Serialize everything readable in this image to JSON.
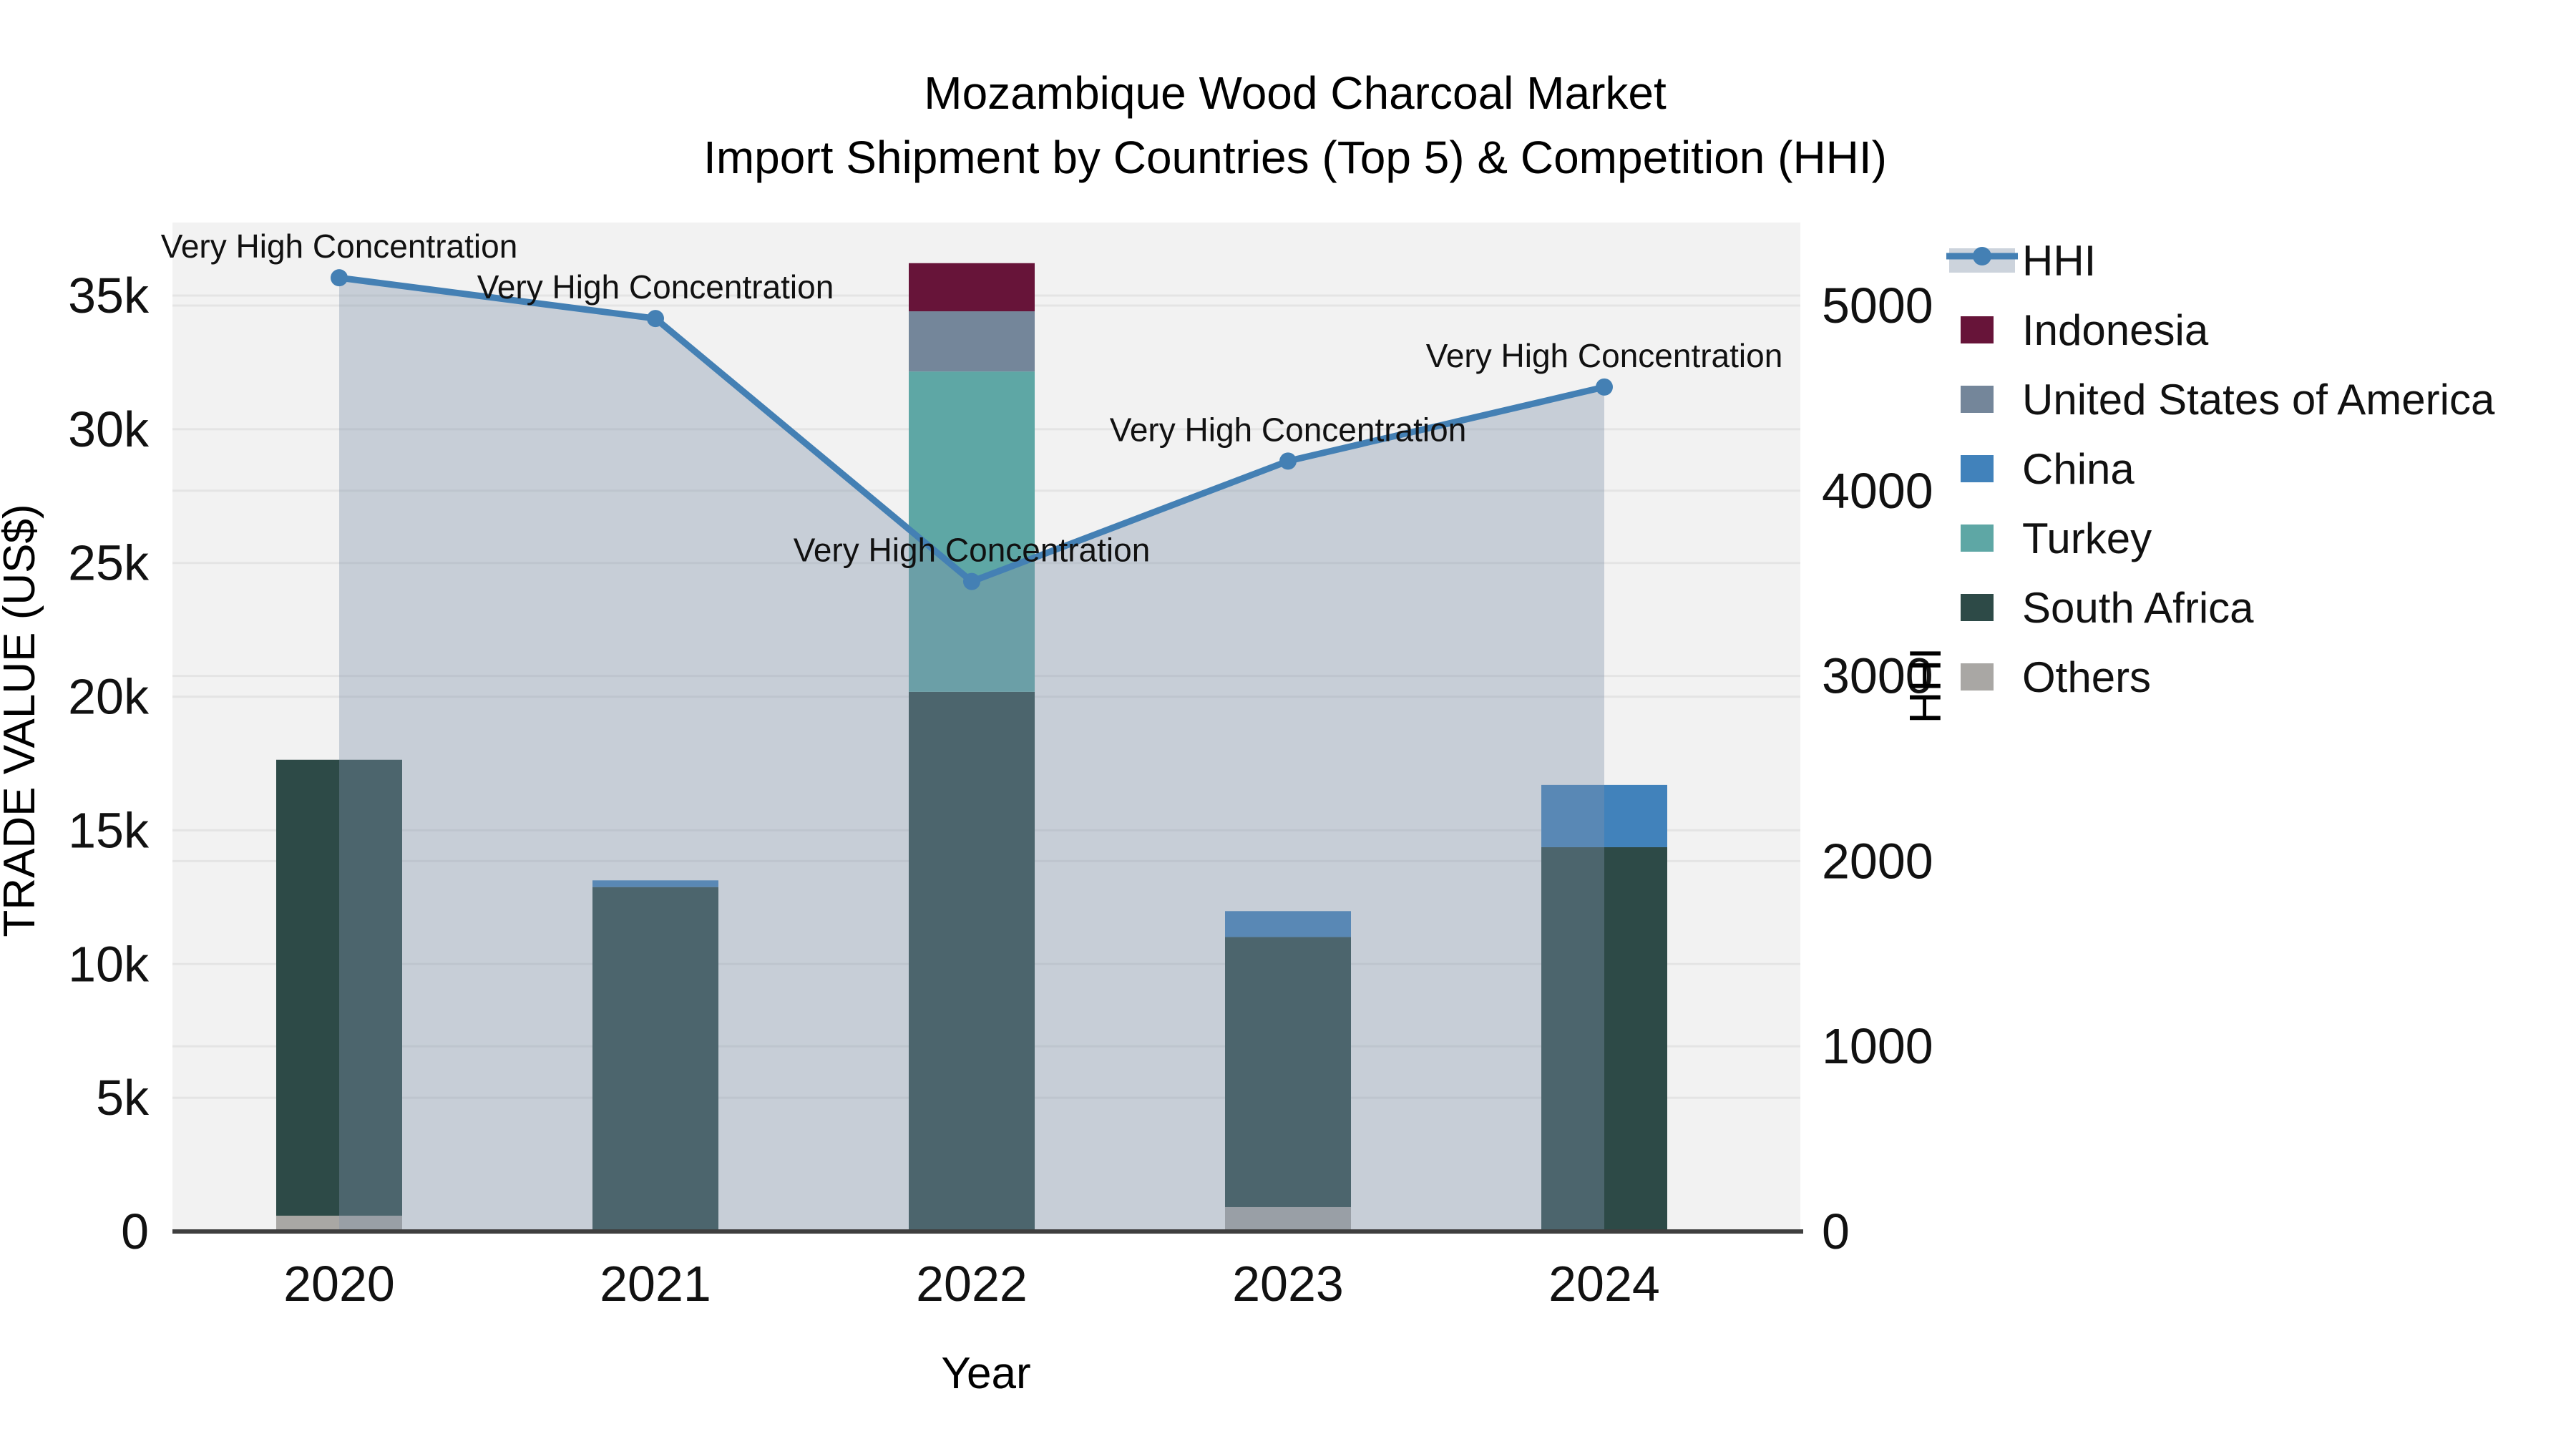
{
  "title": "Mozambique Wood Charcoal Market",
  "subtitle": "Import Shipment by Countries (Top 5) & Competition (HHI)",
  "axes": {
    "left": {
      "title": "TRADE VALUE (US$)",
      "tick_labels": [
        "0",
        "5k",
        "10k",
        "15k",
        "20k",
        "25k",
        "30k",
        "35k"
      ],
      "tick_values": [
        0,
        5000,
        10000,
        15000,
        20000,
        25000,
        30000,
        35000
      ],
      "range": [
        0,
        35000
      ]
    },
    "right": {
      "title": "HHI",
      "tick_labels": [
        "0",
        "1000",
        "2000",
        "3000",
        "4000",
        "5000"
      ],
      "tick_values": [
        0,
        1000,
        2000,
        3000,
        4000,
        5000
      ],
      "range": [
        0,
        5000
      ]
    },
    "x": {
      "title": "Year",
      "categories": [
        "2020",
        "2021",
        "2022",
        "2023",
        "2024"
      ]
    }
  },
  "legend": {
    "items": [
      {
        "label": "HHI",
        "type": "line",
        "color": "#4480b4"
      },
      {
        "label": "Indonesia",
        "type": "swatch",
        "color": "#671439"
      },
      {
        "label": "United States of America",
        "type": "swatch",
        "color": "#74869a"
      },
      {
        "label": "China",
        "type": "swatch",
        "color": "#4182bb"
      },
      {
        "label": "Turkey",
        "type": "swatch",
        "color": "#5ea7a5"
      },
      {
        "label": "South Africa",
        "type": "swatch",
        "color": "#2d4a47"
      },
      {
        "label": "Others",
        "type": "swatch",
        "color": "#a9a7a4"
      }
    ]
  },
  "chart_data": {
    "type": "bar",
    "subtype": "stacked-bars-with-line",
    "categories": [
      "2020",
      "2021",
      "2022",
      "2023",
      "2024"
    ],
    "bar_axis": "left",
    "series": [
      {
        "name": "Others",
        "color": "#a9a7a4",
        "values": [
          590,
          0,
          0,
          910,
          0
        ]
      },
      {
        "name": "South Africa",
        "color": "#2d4a47",
        "values": [
          17050,
          12880,
          20180,
          10100,
          14370
        ]
      },
      {
        "name": "Turkey",
        "color": "#5ea7a5",
        "values": [
          0,
          0,
          11980,
          0,
          0
        ]
      },
      {
        "name": "China",
        "color": "#4182bb",
        "values": [
          0,
          250,
          0,
          970,
          2330
        ]
      },
      {
        "name": "United States of America",
        "color": "#74869a",
        "values": [
          0,
          0,
          2250,
          0,
          0
        ]
      },
      {
        "name": "Indonesia",
        "color": "#671439",
        "values": [
          0,
          0,
          1800,
          0,
          0
        ]
      }
    ],
    "line_series": {
      "name": "HHI",
      "axis": "right",
      "color": "#4480b4",
      "area_fill": "rgba(130,148,170,0.38)",
      "values": [
        5150,
        4930,
        3510,
        4160,
        4560
      ]
    },
    "annotations": [
      {
        "x": "2020",
        "text": "Very High Concentration"
      },
      {
        "x": "2021",
        "text": "Very High Concentration"
      },
      {
        "x": "2022",
        "text": "Very High Concentration"
      },
      {
        "x": "2023",
        "text": "Very High Concentration"
      },
      {
        "x": "2024",
        "text": "Very High Concentration"
      }
    ],
    "title": "Mozambique Wood Charcoal Market",
    "xlabel": "Year",
    "ylabel_left": "TRADE VALUE (US$)",
    "ylabel_right": "HHI",
    "grid": true,
    "legend_position": "right"
  },
  "colors": {
    "plot_bg": "#f2f2f2",
    "grid": "#e4e4e4",
    "axis_line": "#3f3f3f",
    "area_fill": "rgba(130,148,170,0.38)",
    "hhi_line": "#4480b4",
    "legend_band": "#ccd3dc"
  }
}
